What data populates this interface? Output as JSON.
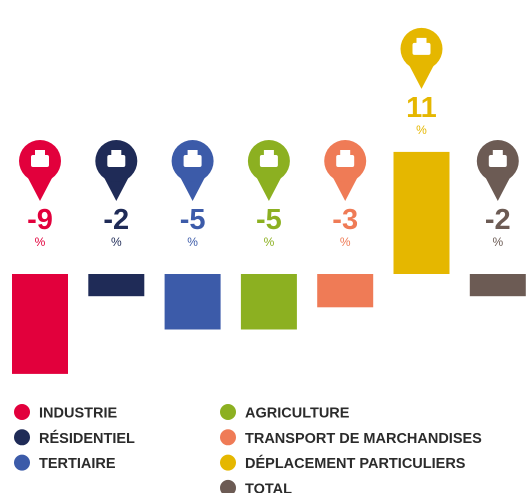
{
  "chart_data": {
    "type": "bar",
    "categories": [
      "INDUSTRIE",
      "RÉSIDENTIEL",
      "TERTIAIRE",
      "AGRICULTURE",
      "TRANSPORT DE MARCHANDISES",
      "DÉPLACEMENT PARTICULIERS",
      "TOTAL"
    ],
    "values": [
      -9,
      -2,
      -5,
      -5,
      -3,
      11,
      -2
    ],
    "colors": [
      "#e2003c",
      "#1f2b57",
      "#3c5ba9",
      "#8cb021",
      "#ef7b56",
      "#e5b700",
      "#6c5b54"
    ],
    "unit": "%"
  }
}
